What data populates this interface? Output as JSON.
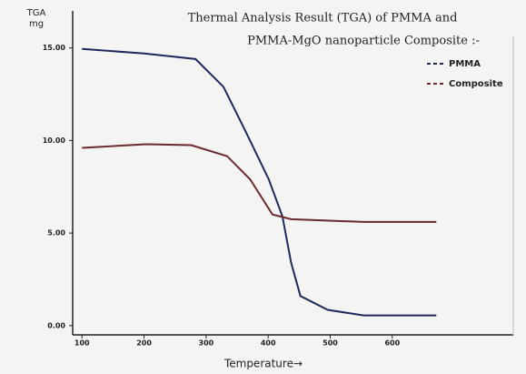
{
  "chart_data": {
    "type": "line",
    "title": [
      "Thermal Analysis Result (TGA) of PMMA and",
      "PMMA-MgO nanoparticle Composite :-"
    ],
    "y_label": [
      "TGA",
      "mg"
    ],
    "x_label": "Temperature→",
    "xlim": [
      85,
      795
    ],
    "ylim": [
      -0.5,
      17
    ],
    "xticks": [
      100,
      200,
      300,
      400,
      500,
      600
    ],
    "yticks": [
      {
        "value": 0,
        "label": "0.00"
      },
      {
        "value": 5,
        "label": "5.00"
      },
      {
        "value": 10,
        "label": "10.00"
      },
      {
        "value": 15,
        "label": "15.00"
      }
    ],
    "legend": "upper right",
    "series": [
      {
        "name": "PMMA",
        "color": "#1f2a5c",
        "x": [
          100,
          200,
          283,
          328,
          365,
          401,
          423,
          437,
          452,
          496,
          554,
          671
        ],
        "values": [
          14.95,
          14.7,
          14.4,
          12.9,
          10.4,
          7.9,
          5.9,
          3.4,
          1.6,
          0.85,
          0.55,
          0.55
        ]
      },
      {
        "name": "Composite",
        "color": "#6b2a2e",
        "x": [
          100,
          203,
          276,
          334,
          371,
          407,
          437,
          554,
          671
        ],
        "values": [
          9.6,
          9.8,
          9.75,
          9.15,
          7.9,
          6.0,
          5.75,
          5.6,
          5.6
        ]
      }
    ]
  }
}
